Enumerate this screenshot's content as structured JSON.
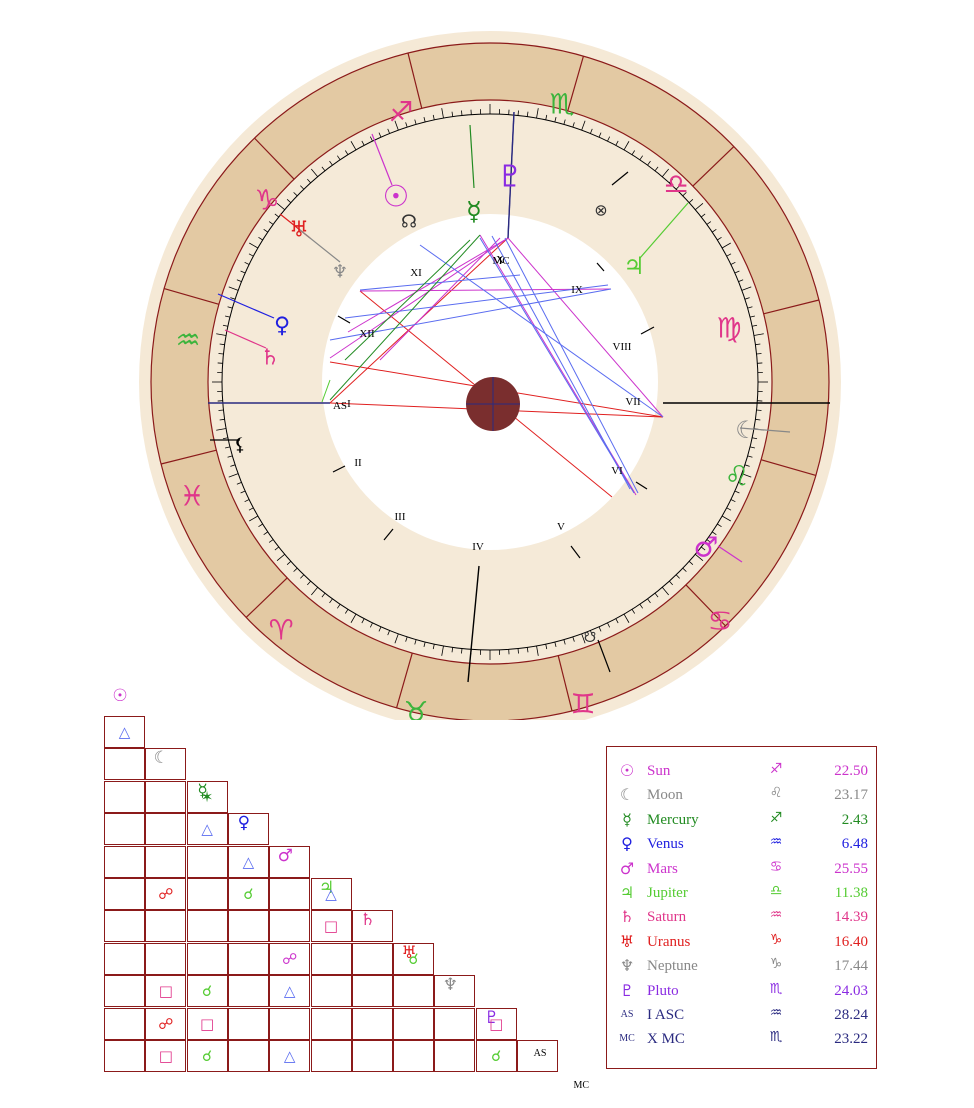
{
  "colors": {
    "outer_ring": "#f5e9d6",
    "zodiac_band": "#e3c9a3",
    "inner_band": "#f5ead8",
    "frame": "#8b1a1a",
    "earth": "#7a2e2e"
  },
  "zodiac_signs": [
    {
      "name": "sagittarius-icon",
      "glyph": "♐",
      "color": "#e0368a"
    },
    {
      "name": "scorpio-icon",
      "glyph": "♏",
      "color": "#3cb43c"
    },
    {
      "name": "libra-icon",
      "glyph": "♎",
      "color": "#e0368a"
    },
    {
      "name": "virgo-icon",
      "glyph": "♍",
      "color": "#e0368a"
    },
    {
      "name": "leo-icon",
      "glyph": "♌",
      "color": "#3cb43c"
    },
    {
      "name": "cancer-icon",
      "glyph": "♋",
      "color": "#e0368a"
    },
    {
      "name": "gemini-icon",
      "glyph": "♊",
      "color": "#e0368a"
    },
    {
      "name": "taurus-icon",
      "glyph": "♉",
      "color": "#3cb43c"
    },
    {
      "name": "aries-icon",
      "glyph": "♈",
      "color": "#e0368a"
    },
    {
      "name": "pisces-icon",
      "glyph": "♓",
      "color": "#e0368a"
    },
    {
      "name": "aquarius-icon",
      "glyph": "♒",
      "color": "#3cb43c"
    },
    {
      "name": "capricorn-icon",
      "glyph": "♑",
      "color": "#e0368a"
    }
  ],
  "houses": [
    "I",
    "II",
    "III",
    "IV",
    "V",
    "VI",
    "VII",
    "VIII",
    "IX",
    "X",
    "XI",
    "XII"
  ],
  "house_labels": {
    "asc": "AS",
    "mc": "MC"
  },
  "chart_planets": [
    {
      "name": "sun-icon",
      "glyph": "☉",
      "color": "#cc33cc"
    },
    {
      "name": "north-node-icon",
      "glyph": "☊",
      "color": "#333333"
    },
    {
      "name": "mercury-icon",
      "glyph": "☿",
      "color": "#228b22"
    },
    {
      "name": "pluto-icon",
      "glyph": "♇",
      "color": "#8a2be2"
    },
    {
      "name": "part-of-fortune-icon",
      "glyph": "⊗",
      "color": "#333333"
    },
    {
      "name": "jupiter-icon",
      "glyph": "♃",
      "color": "#55cc33"
    },
    {
      "name": "uranus-icon",
      "glyph": "♅",
      "color": "#e02020"
    },
    {
      "name": "neptune-icon",
      "glyph": "♆",
      "color": "#888888"
    },
    {
      "name": "venus-icon",
      "glyph": "♀",
      "color": "#2020e0"
    },
    {
      "name": "saturn-icon",
      "glyph": "♄",
      "color": "#e0368a"
    },
    {
      "name": "lilith-icon",
      "glyph": "⚸",
      "color": "#000000"
    },
    {
      "name": "moon-icon",
      "glyph": "☾",
      "color": "#888888"
    },
    {
      "name": "mars-icon",
      "glyph": "♂",
      "color": "#cc33cc"
    },
    {
      "name": "south-node-icon",
      "glyph": "☋",
      "color": "#333333"
    }
  ],
  "planets": [
    {
      "glyph": "☉",
      "name": "Sun",
      "sign": "♐",
      "deg": "22.50",
      "color": "#cc33cc"
    },
    {
      "glyph": "☾",
      "name": "Moon",
      "sign": "♌",
      "deg": "23.17",
      "color": "#888888"
    },
    {
      "glyph": "☿",
      "name": "Mercury",
      "sign": "♐",
      "deg": "2.43",
      "color": "#228b22"
    },
    {
      "glyph": "♀",
      "name": "Venus",
      "sign": "♒",
      "deg": "6.48",
      "color": "#2020e0"
    },
    {
      "glyph": "♂",
      "name": "Mars",
      "sign": "♋",
      "deg": "25.55",
      "color": "#cc33cc"
    },
    {
      "glyph": "♃",
      "name": "Jupiter",
      "sign": "♎",
      "deg": "11.38",
      "color": "#55cc33"
    },
    {
      "glyph": "♄",
      "name": "Saturn",
      "sign": "♒",
      "deg": "14.39",
      "color": "#e0368a"
    },
    {
      "glyph": "♅",
      "name": "Uranus",
      "sign": "♑",
      "deg": "16.40",
      "color": "#e02020"
    },
    {
      "glyph": "♆",
      "name": "Neptune",
      "sign": "♑",
      "deg": "17.44",
      "color": "#888888"
    },
    {
      "glyph": "♇",
      "name": "Pluto",
      "sign": "♏",
      "deg": "24.03",
      "color": "#8a2be2"
    },
    {
      "glyph": "AS",
      "name": "I ASC",
      "sign": "♒",
      "deg": "28.24",
      "color": "#2a2a80"
    },
    {
      "glyph": "MC",
      "name": "X MC",
      "sign": "♏",
      "deg": "23.22",
      "color": "#2a2a80"
    }
  ],
  "aspect_grid": {
    "heads": [
      {
        "glyph": "☉",
        "color": "#cc33cc"
      },
      {
        "glyph": "☾",
        "color": "#888888"
      },
      {
        "glyph": "☿",
        "color": "#228b22"
      },
      {
        "glyph": "♀",
        "color": "#2020e0"
      },
      {
        "glyph": "♂",
        "color": "#cc33cc"
      },
      {
        "glyph": "♃",
        "color": "#55cc33"
      },
      {
        "glyph": "♄",
        "color": "#e0368a"
      },
      {
        "glyph": "♅",
        "color": "#e02020"
      },
      {
        "glyph": "♆",
        "color": "#888888"
      },
      {
        "glyph": "♇",
        "color": "#8a2be2"
      },
      {
        "glyph": "AS",
        "color": "#000000"
      },
      {
        "glyph": "MC",
        "color": "#000000"
      }
    ],
    "cells": [
      {
        "r": 1,
        "c": 0,
        "g": "△",
        "color": "#5a6cf0"
      },
      {
        "r": 3,
        "c": 2,
        "g": "✶",
        "color": "#228b22"
      },
      {
        "r": 4,
        "c": 2,
        "g": "△",
        "color": "#5a6cf0"
      },
      {
        "r": 5,
        "c": 3,
        "g": "△",
        "color": "#5a6cf0"
      },
      {
        "r": 6,
        "c": 1,
        "g": "☍",
        "color": "#e02020"
      },
      {
        "r": 6,
        "c": 3,
        "g": "☌",
        "color": "#55cc33"
      },
      {
        "r": 6,
        "c": 5,
        "g": "△",
        "color": "#5a6cf0"
      },
      {
        "r": 7,
        "c": 5,
        "g": "□",
        "color": "#e0368a"
      },
      {
        "r": 8,
        "c": 4,
        "g": "☍",
        "color": "#cc33cc"
      },
      {
        "r": 8,
        "c": 7,
        "g": "☌",
        "color": "#55cc33"
      },
      {
        "r": 9,
        "c": 1,
        "g": "□",
        "color": "#e0368a"
      },
      {
        "r": 9,
        "c": 2,
        "g": "☌",
        "color": "#55cc33"
      },
      {
        "r": 9,
        "c": 4,
        "g": "△",
        "color": "#5a6cf0"
      },
      {
        "r": 10,
        "c": 1,
        "g": "☍",
        "color": "#e02020"
      },
      {
        "r": 10,
        "c": 2,
        "g": "□",
        "color": "#e0368a"
      },
      {
        "r": 10,
        "c": 9,
        "g": "□",
        "color": "#e0368a"
      },
      {
        "r": 11,
        "c": 1,
        "g": "□",
        "color": "#e0368a"
      },
      {
        "r": 11,
        "c": 2,
        "g": "☌",
        "color": "#55cc33"
      },
      {
        "r": 11,
        "c": 4,
        "g": "△",
        "color": "#5a6cf0"
      },
      {
        "r": 11,
        "c": 9,
        "g": "☌",
        "color": "#55cc33"
      }
    ]
  }
}
